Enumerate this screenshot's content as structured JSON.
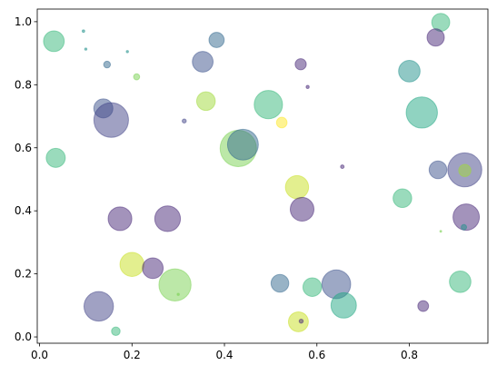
{
  "chart_data": {
    "type": "scatter",
    "title": "",
    "xlabel": "",
    "ylabel": "",
    "xlim": [
      -0.005,
      0.97
    ],
    "ylim": [
      -0.02,
      1.04
    ],
    "xticks": [
      "0.0",
      "0.2",
      "0.4",
      "0.6",
      "0.8"
    ],
    "yticks": [
      "0.0",
      "0.2",
      "0.4",
      "0.6",
      "0.8",
      "1.0"
    ],
    "grid": false,
    "colormap": "viridis",
    "alpha": 0.5,
    "points": [
      {
        "x": 0.031,
        "y": 0.938,
        "size": 520,
        "color": "#35b779"
      },
      {
        "x": 0.095,
        "y": 0.97,
        "size": 8,
        "color": "#21918c"
      },
      {
        "x": 0.1,
        "y": 0.913,
        "size": 6,
        "color": "#21918c"
      },
      {
        "x": 0.146,
        "y": 0.864,
        "size": 55,
        "color": "#31688e"
      },
      {
        "x": 0.19,
        "y": 0.905,
        "size": 6,
        "color": "#21918c"
      },
      {
        "x": 0.21,
        "y": 0.825,
        "size": 45,
        "color": "#7ad151"
      },
      {
        "x": 0.383,
        "y": 0.942,
        "size": 280,
        "color": "#31688e"
      },
      {
        "x": 0.353,
        "y": 0.873,
        "size": 520,
        "color": "#3b528b"
      },
      {
        "x": 0.565,
        "y": 0.865,
        "size": 150,
        "color": "#482878"
      },
      {
        "x": 0.58,
        "y": 0.793,
        "size": 12,
        "color": "#482878"
      },
      {
        "x": 0.868,
        "y": 0.998,
        "size": 390,
        "color": "#35b779"
      },
      {
        "x": 0.857,
        "y": 0.95,
        "size": 360,
        "color": "#482878"
      },
      {
        "x": 0.8,
        "y": 0.843,
        "size": 560,
        "color": "#21918c"
      },
      {
        "x": 0.138,
        "y": 0.725,
        "size": 440,
        "color": "#3b528b"
      },
      {
        "x": 0.155,
        "y": 0.688,
        "size": 1450,
        "color": "#414487"
      },
      {
        "x": 0.36,
        "y": 0.748,
        "size": 420,
        "color": "#a0da39"
      },
      {
        "x": 0.313,
        "y": 0.685,
        "size": 20,
        "color": "#414487"
      },
      {
        "x": 0.495,
        "y": 0.737,
        "size": 970,
        "color": "#35b779"
      },
      {
        "x": 0.524,
        "y": 0.68,
        "size": 135,
        "color": "#fde725"
      },
      {
        "x": 0.827,
        "y": 0.712,
        "size": 1180,
        "color": "#22a884"
      },
      {
        "x": 0.43,
        "y": 0.598,
        "size": 1600,
        "color": "#7ad151"
      },
      {
        "x": 0.44,
        "y": 0.61,
        "size": 1150,
        "color": "#31688e"
      },
      {
        "x": 0.035,
        "y": 0.568,
        "size": 440,
        "color": "#35b779"
      },
      {
        "x": 0.655,
        "y": 0.54,
        "size": 15,
        "color": "#482878"
      },
      {
        "x": 0.862,
        "y": 0.53,
        "size": 380,
        "color": "#3b528b"
      },
      {
        "x": 0.92,
        "y": 0.53,
        "size": 1400,
        "color": "#414487"
      },
      {
        "x": 0.92,
        "y": 0.528,
        "size": 180,
        "color": "#a0da39"
      },
      {
        "x": 0.557,
        "y": 0.475,
        "size": 650,
        "color": "#c8e020"
      },
      {
        "x": 0.785,
        "y": 0.44,
        "size": 420,
        "color": "#35b779"
      },
      {
        "x": 0.174,
        "y": 0.375,
        "size": 680,
        "color": "#482878"
      },
      {
        "x": 0.277,
        "y": 0.375,
        "size": 800,
        "color": "#482878"
      },
      {
        "x": 0.568,
        "y": 0.405,
        "size": 680,
        "color": "#482878"
      },
      {
        "x": 0.923,
        "y": 0.38,
        "size": 840,
        "color": "#482878"
      },
      {
        "x": 0.868,
        "y": 0.335,
        "size": 4,
        "color": "#7ad151"
      },
      {
        "x": 0.918,
        "y": 0.348,
        "size": 35,
        "color": "#21918c"
      },
      {
        "x": 0.2,
        "y": 0.23,
        "size": 700,
        "color": "#c8e020"
      },
      {
        "x": 0.245,
        "y": 0.218,
        "size": 520,
        "color": "#482878"
      },
      {
        "x": 0.293,
        "y": 0.165,
        "size": 1250,
        "color": "#7ad151"
      },
      {
        "x": 0.3,
        "y": 0.135,
        "size": 6,
        "color": "#7ad151"
      },
      {
        "x": 0.52,
        "y": 0.17,
        "size": 380,
        "color": "#31688e"
      },
      {
        "x": 0.59,
        "y": 0.158,
        "size": 420,
        "color": "#35b779"
      },
      {
        "x": 0.642,
        "y": 0.167,
        "size": 1000,
        "color": "#3b528b"
      },
      {
        "x": 0.658,
        "y": 0.1,
        "size": 780,
        "color": "#22a884"
      },
      {
        "x": 0.91,
        "y": 0.175,
        "size": 560,
        "color": "#35b779"
      },
      {
        "x": 0.128,
        "y": 0.097,
        "size": 1050,
        "color": "#414487"
      },
      {
        "x": 0.83,
        "y": 0.098,
        "size": 140,
        "color": "#482878"
      },
      {
        "x": 0.165,
        "y": 0.018,
        "size": 90,
        "color": "#35b779"
      },
      {
        "x": 0.56,
        "y": 0.048,
        "size": 480,
        "color": "#c8e020"
      },
      {
        "x": 0.566,
        "y": 0.05,
        "size": 20,
        "color": "#482878"
      }
    ]
  }
}
